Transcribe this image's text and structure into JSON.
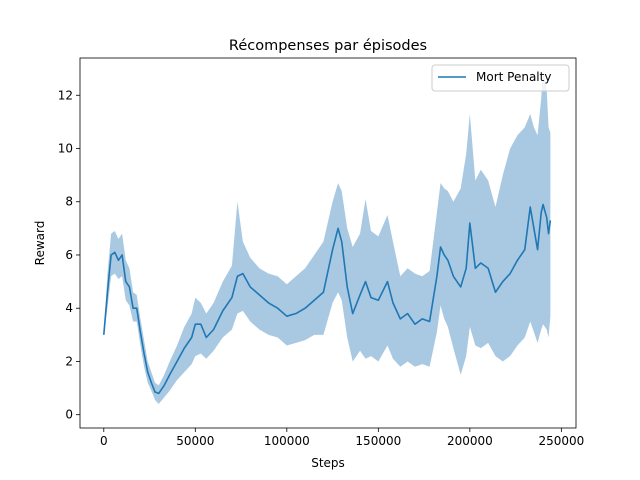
{
  "chart_data": {
    "type": "line",
    "title": "Récompenses par épisodes",
    "xlabel": "Steps",
    "ylabel": "Reward",
    "xlim": [
      -13000,
      258000
    ],
    "ylim": [
      -0.5,
      13.4
    ],
    "xticks": [
      0,
      50000,
      100000,
      150000,
      200000,
      250000
    ],
    "yticks": [
      0,
      2,
      4,
      6,
      8,
      10,
      12
    ],
    "grid": false,
    "legend_position": "top-right",
    "series": [
      {
        "name": "Mort Penalty",
        "color": "#1f77b4",
        "band_color": "#a9c9e2",
        "x": [
          0,
          2000,
          4000,
          6000,
          8000,
          10000,
          12000,
          14000,
          16000,
          18000,
          20000,
          22000,
          24000,
          26000,
          28000,
          30000,
          33000,
          36000,
          40000,
          44000,
          48000,
          50000,
          53000,
          56000,
          60000,
          65000,
          70000,
          73000,
          76000,
          80000,
          85000,
          90000,
          95000,
          100000,
          105000,
          110000,
          115000,
          120000,
          125000,
          128000,
          130000,
          133000,
          136000,
          140000,
          143000,
          146000,
          150000,
          155000,
          158000,
          162000,
          166000,
          170000,
          174000,
          178000,
          182000,
          184000,
          186000,
          188000,
          191000,
          195000,
          198000,
          200000,
          203000,
          206000,
          210000,
          214000,
          218000,
          222000,
          226000,
          230000,
          233000,
          235000,
          237000,
          239000,
          240000,
          242000,
          243000,
          244000
        ],
        "mean": [
          3.0,
          4.6,
          6.0,
          6.1,
          5.8,
          6.0,
          5.0,
          4.8,
          4.0,
          4.0,
          3.1,
          2.3,
          1.6,
          1.2,
          0.85,
          0.8,
          1.1,
          1.5,
          2.0,
          2.5,
          2.9,
          3.4,
          3.4,
          2.9,
          3.2,
          3.9,
          4.4,
          5.2,
          5.3,
          4.8,
          4.5,
          4.2,
          4.0,
          3.7,
          3.8,
          4.0,
          4.3,
          4.6,
          6.2,
          7.0,
          6.5,
          4.8,
          3.8,
          4.5,
          5.0,
          4.4,
          4.3,
          5.0,
          4.2,
          3.6,
          3.8,
          3.4,
          3.6,
          3.5,
          5.2,
          6.3,
          6.0,
          5.8,
          5.2,
          4.8,
          5.5,
          7.2,
          5.5,
          5.7,
          5.5,
          4.6,
          5.0,
          5.3,
          5.8,
          6.2,
          7.8,
          7.0,
          6.2,
          7.6,
          7.9,
          7.4,
          6.8,
          7.3
        ],
        "upper": [
          3.0,
          5.3,
          6.8,
          6.9,
          6.6,
          6.8,
          5.8,
          5.5,
          4.6,
          4.5,
          3.6,
          2.8,
          2.0,
          1.6,
          1.2,
          1.1,
          1.5,
          2.0,
          2.6,
          3.3,
          3.8,
          4.4,
          4.2,
          3.8,
          4.2,
          5.0,
          5.6,
          8.0,
          6.5,
          5.9,
          5.5,
          5.3,
          5.2,
          4.9,
          5.2,
          5.5,
          6.0,
          6.5,
          8.0,
          8.7,
          8.4,
          7.0,
          6.3,
          6.8,
          8.1,
          6.9,
          6.7,
          7.5,
          6.5,
          5.2,
          5.5,
          5.3,
          5.2,
          5.4,
          7.6,
          8.7,
          8.5,
          8.4,
          8.0,
          8.5,
          9.8,
          11.3,
          8.8,
          9.2,
          8.8,
          7.8,
          9.0,
          10.0,
          10.5,
          10.8,
          11.3,
          10.8,
          10.5,
          11.9,
          13.0,
          12.2,
          10.8,
          10.6
        ],
        "lower": [
          3.0,
          4.0,
          5.2,
          5.3,
          5.1,
          5.2,
          4.3,
          4.1,
          3.5,
          3.5,
          2.6,
          1.8,
          1.2,
          0.9,
          0.55,
          0.4,
          0.65,
          0.9,
          1.3,
          1.6,
          1.9,
          2.2,
          2.3,
          2.1,
          2.4,
          2.9,
          3.2,
          3.8,
          3.9,
          3.5,
          3.2,
          3.0,
          2.9,
          2.6,
          2.7,
          2.8,
          3.0,
          3.0,
          4.2,
          4.6,
          4.3,
          2.9,
          2.0,
          2.4,
          2.1,
          2.2,
          2.0,
          2.6,
          2.1,
          1.8,
          2.0,
          1.8,
          1.9,
          1.8,
          3.1,
          4.1,
          3.6,
          3.3,
          2.5,
          1.5,
          2.2,
          3.3,
          2.6,
          2.5,
          2.7,
          2.2,
          2.0,
          2.2,
          2.6,
          2.9,
          3.5,
          3.1,
          2.7,
          3.2,
          3.4,
          3.2,
          2.9,
          3.7
        ]
      }
    ]
  }
}
